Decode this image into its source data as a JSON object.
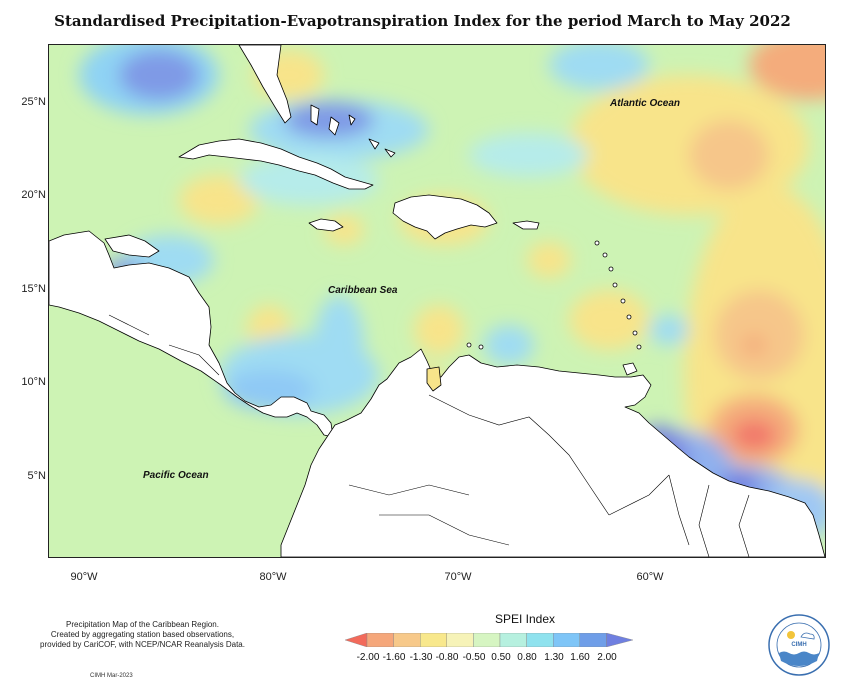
{
  "title": "Standardised Precipitation-Evapotranspiration Index for the period March to May 2022",
  "axes": {
    "lat_ticks": [
      "25°N",
      "20°N",
      "15°N",
      "10°N",
      "5°N"
    ],
    "lon_ticks": [
      "90°W",
      "80°W",
      "70°W",
      "60°W"
    ]
  },
  "labels": {
    "atlantic": "Atlantic Ocean",
    "caribbean": "Caribbean Sea",
    "pacific": "Pacific Ocean"
  },
  "legend": {
    "title": "SPEI Index",
    "ticks": [
      "-2.00",
      "-1.60",
      "-1.30",
      "-0.80",
      "-0.50",
      "0.50",
      "0.80",
      "1.30",
      "1.60",
      "2.00"
    ],
    "colors": [
      "#f26a5b",
      "#f5a77b",
      "#f7c98a",
      "#f8e88c",
      "#f6f3b8",
      "#d6f5c2",
      "#b6f0df",
      "#8fe2ee",
      "#7ec5f7",
      "#6f9ee8",
      "#6f7fe0"
    ]
  },
  "credit": {
    "line1": "Precipitation Map of the Caribbean Region.",
    "line2": "Created by aggregating station based observations,",
    "line3": "provided by CariCOF, with NCEP/NCAR Reanalysis Data.",
    "stamp": "CIMH Mar-2023"
  },
  "logo": {
    "text": "CIMH"
  }
}
